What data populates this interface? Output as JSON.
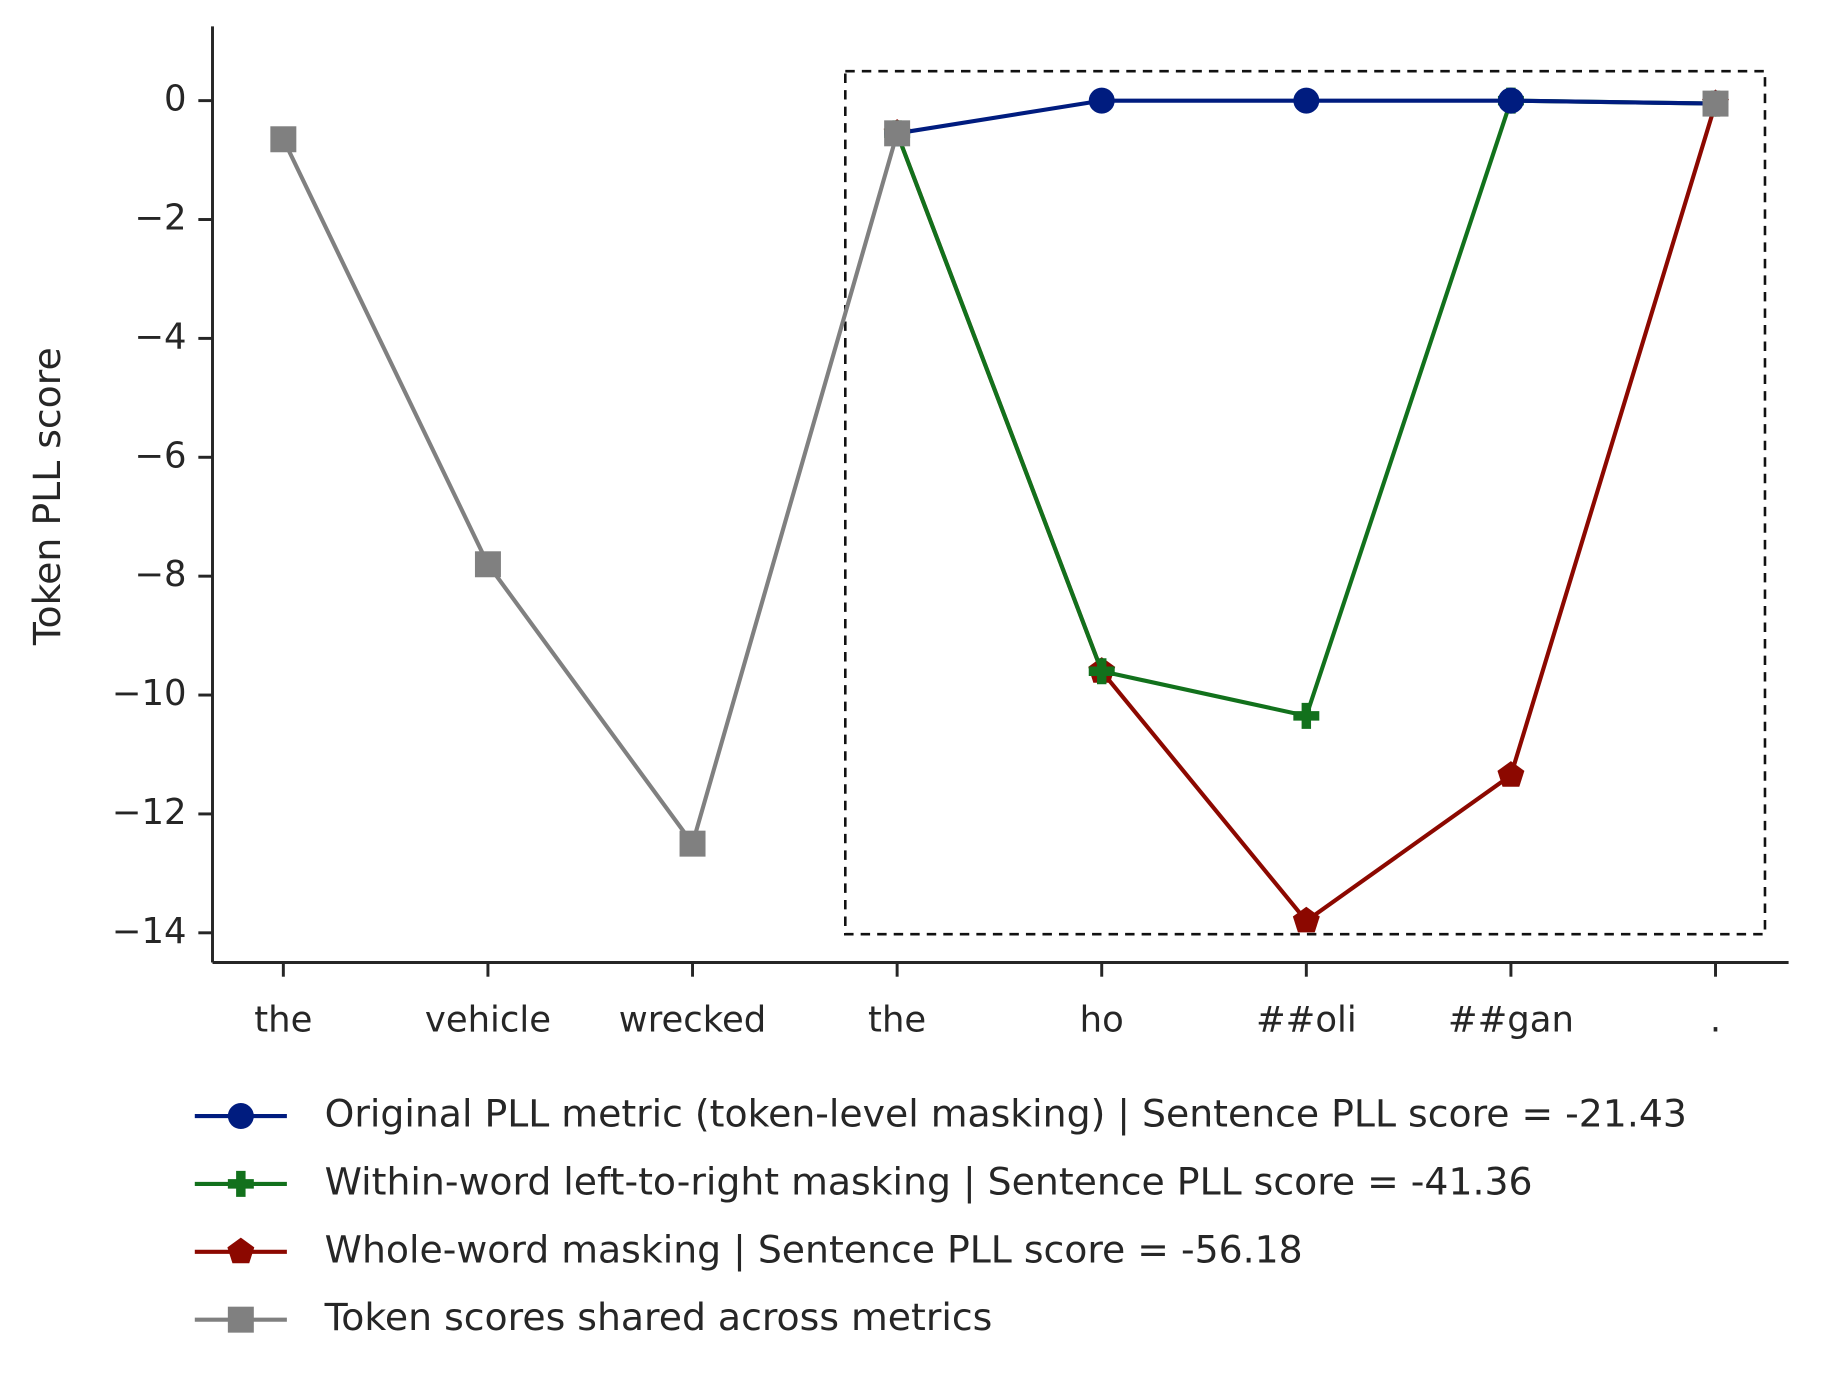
{
  "chart_data": {
    "type": "line",
    "ylabel": "Token PLL score",
    "categories": [
      "the",
      "vehicle",
      "wrecked",
      "the",
      "ho",
      "##oli",
      "##gan",
      "."
    ],
    "series": [
      {
        "name": "Original PLL metric (token-level masking) | Sentence PLL score = -21.43",
        "color": "#001c7f",
        "marker": "circle",
        "values": [
          null,
          null,
          null,
          -0.55,
          0,
          0,
          0,
          -0.05
        ]
      },
      {
        "name": "Within-word left-to-right masking | Sentence PLL score = -41.36",
        "color": "#12711c",
        "marker": "plus",
        "values": [
          null,
          null,
          null,
          -0.55,
          -9.6,
          -10.35,
          0,
          -0.05
        ]
      },
      {
        "name": "Whole-word masking | Sentence PLL score = -56.18",
        "color": "#8c0800",
        "marker": "pentagon",
        "values": [
          null,
          null,
          null,
          -0.55,
          -9.6,
          -13.8,
          -11.35,
          -0.05
        ]
      },
      {
        "name": "Token scores shared across metrics",
        "color": "#808080",
        "marker": "square",
        "values": [
          -0.65,
          -7.8,
          -12.5,
          -0.55,
          null,
          null,
          null,
          -0.05
        ]
      }
    ],
    "ylim": [
      -14.5,
      1.25
    ],
    "yticks": [
      {
        "value": -14,
        "label": "−14"
      },
      {
        "value": -12,
        "label": "−12"
      },
      {
        "value": -10,
        "label": "−10"
      },
      {
        "value": -8,
        "label": "−8"
      },
      {
        "value": -6,
        "label": "−6"
      },
      {
        "value": -4,
        "label": "−4"
      },
      {
        "value": -2,
        "label": "−2"
      },
      0
    ],
    "grid": false
  }
}
